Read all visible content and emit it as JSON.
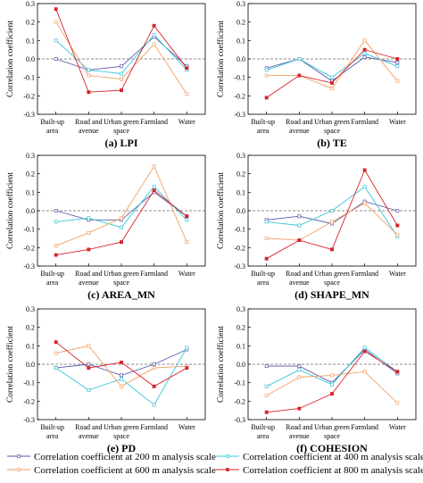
{
  "chart_data": [
    {
      "panel": "(a)",
      "title": "LPI",
      "type": "line",
      "ylabel": "Correlation coefficient",
      "ylim": [
        -0.3,
        0.3
      ],
      "yticks": [
        "0.3",
        "0.2",
        "0.1",
        "0.0",
        "-0.1",
        "-0.2",
        "-0.3"
      ],
      "categories": [
        "Built-up area",
        "Road and avenue",
        "Urban green space",
        "Farmland",
        "Water"
      ],
      "series": [
        {
          "name": "Correlation coefficient at 200 m analysis scale",
          "values": [
            0.0,
            -0.06,
            -0.04,
            0.12,
            -0.04
          ]
        },
        {
          "name": "Correlation coefficient at 400 m analysis scale",
          "values": [
            0.1,
            -0.06,
            -0.08,
            0.13,
            -0.06
          ]
        },
        {
          "name": "Correlation coefficient at 600 m analysis scale",
          "values": [
            0.2,
            -0.09,
            -0.11,
            0.08,
            -0.19
          ]
        },
        {
          "name": "Correlation coefficient at 800 m analysis scale",
          "values": [
            0.27,
            -0.18,
            -0.17,
            0.18,
            -0.05
          ]
        }
      ]
    },
    {
      "panel": "(b)",
      "title": "TE",
      "type": "line",
      "ylabel": "Correlation coefficient",
      "ylim": [
        -0.3,
        0.3
      ],
      "yticks": [
        "0.3",
        "0.2",
        "0.1",
        "0.0",
        "-0.1",
        "-0.2",
        "-0.3"
      ],
      "categories": [
        "Built-up area",
        "Road and avenue",
        "Urban green space",
        "Farmland",
        "Water"
      ],
      "series": [
        {
          "name": "Correlation coefficient at 200 m analysis scale",
          "values": [
            -0.05,
            0.0,
            -0.12,
            0.01,
            -0.02
          ]
        },
        {
          "name": "Correlation coefficient at 400 m analysis scale",
          "values": [
            -0.06,
            0.0,
            -0.1,
            0.03,
            -0.04
          ]
        },
        {
          "name": "Correlation coefficient at 600 m analysis scale",
          "values": [
            -0.09,
            -0.09,
            -0.16,
            0.1,
            -0.12
          ]
        },
        {
          "name": "Correlation coefficient at 800 m analysis scale",
          "values": [
            -0.21,
            -0.09,
            -0.13,
            0.05,
            0.0
          ]
        }
      ]
    },
    {
      "panel": "(c)",
      "title": "AREA_MN",
      "type": "line",
      "ylabel": "Correlation coefficient",
      "ylim": [
        -0.3,
        0.3
      ],
      "yticks": [
        "0.3",
        "0.2",
        "0.1",
        "0.0",
        "-0.1",
        "-0.2",
        "-0.3"
      ],
      "categories": [
        "Built-up area",
        "Road and avenue",
        "Urban green space",
        "Farmland",
        "Water"
      ],
      "series": [
        {
          "name": "Correlation coefficient at 200 m analysis scale",
          "values": [
            0.0,
            -0.05,
            -0.05,
            0.1,
            -0.03
          ]
        },
        {
          "name": "Correlation coefficient at 400 m analysis scale",
          "values": [
            -0.06,
            -0.04,
            -0.09,
            0.13,
            -0.05
          ]
        },
        {
          "name": "Correlation coefficient at 600 m analysis scale",
          "values": [
            -0.19,
            -0.12,
            -0.04,
            0.24,
            -0.17
          ]
        },
        {
          "name": "Correlation coefficient at 800 m analysis scale",
          "values": [
            -0.24,
            -0.21,
            -0.17,
            0.11,
            -0.03
          ]
        }
      ]
    },
    {
      "panel": "(d)",
      "title": "SHAPE_MN",
      "type": "line",
      "ylabel": "Correlation coefficient",
      "ylim": [
        -0.3,
        0.3
      ],
      "yticks": [
        "0.3",
        "0.2",
        "0.1",
        "0.0",
        "-0.1",
        "-0.2",
        "-0.3"
      ],
      "categories": [
        "Built-up area",
        "Road and avenue",
        "Urban green space",
        "Farmland",
        "Water"
      ],
      "series": [
        {
          "name": "Correlation coefficient at 200 m analysis scale",
          "values": [
            -0.05,
            -0.03,
            -0.07,
            0.05,
            0.0
          ]
        },
        {
          "name": "Correlation coefficient at 400 m analysis scale",
          "values": [
            -0.06,
            -0.08,
            0.0,
            0.13,
            -0.14
          ]
        },
        {
          "name": "Correlation coefficient at 600 m analysis scale",
          "values": [
            -0.15,
            -0.16,
            -0.06,
            0.04,
            -0.13
          ]
        },
        {
          "name": "Correlation coefficient at 800 m analysis scale",
          "values": [
            -0.26,
            -0.16,
            -0.21,
            0.22,
            -0.08
          ]
        }
      ]
    },
    {
      "panel": "(e)",
      "title": "PD",
      "type": "line",
      "ylabel": "Correlation coefficient",
      "ylim": [
        -0.3,
        0.3
      ],
      "yticks": [
        "0.3",
        "0.2",
        "0.1",
        "0.0",
        "-0.1",
        "-0.2",
        "-0.3"
      ],
      "categories": [
        "Built-up area",
        "Road and avenue",
        "Urban green space",
        "Farmland",
        "Water"
      ],
      "series": [
        {
          "name": "Correlation coefficient at 200 m analysis scale",
          "values": [
            -0.02,
            0.0,
            -0.06,
            0.0,
            0.08
          ]
        },
        {
          "name": "Correlation coefficient at 400 m analysis scale",
          "values": [
            -0.02,
            -0.14,
            -0.08,
            -0.22,
            0.09
          ]
        },
        {
          "name": "Correlation coefficient at 600 m analysis scale",
          "values": [
            0.06,
            0.1,
            -0.12,
            -0.02,
            -0.01
          ]
        },
        {
          "name": "Correlation coefficient at 800 m analysis scale",
          "values": [
            0.12,
            -0.02,
            0.01,
            -0.12,
            -0.02
          ]
        }
      ]
    },
    {
      "panel": "(f)",
      "title": "COHESION",
      "type": "line",
      "ylabel": "Correlation coefficient",
      "ylim": [
        -0.3,
        0.3
      ],
      "yticks": [
        "0.3",
        "0.2",
        "0.1",
        "0.0",
        "-0.1",
        "-0.2",
        "-0.3"
      ],
      "categories": [
        "Built-up area",
        "Road and avenue",
        "Urban green space",
        "Farmland",
        "Water"
      ],
      "series": [
        {
          "name": "Correlation coefficient at 200 m analysis scale",
          "values": [
            -0.01,
            -0.01,
            -0.1,
            0.08,
            -0.05
          ]
        },
        {
          "name": "Correlation coefficient at 400 m analysis scale",
          "values": [
            -0.12,
            -0.03,
            -0.11,
            0.09,
            -0.04
          ]
        },
        {
          "name": "Correlation coefficient at 600 m analysis scale",
          "values": [
            -0.17,
            -0.07,
            -0.06,
            -0.04,
            -0.21
          ]
        },
        {
          "name": "Correlation coefficient at 800 m analysis scale",
          "values": [
            -0.26,
            -0.24,
            -0.16,
            0.07,
            -0.04
          ]
        }
      ]
    }
  ],
  "legend": [
    {
      "label": "Correlation coefficient at 200 m analysis scale",
      "color": "#5a5aa8"
    },
    {
      "label": "Correlation coefficient at 400 m analysis scale",
      "color": "#38c6d6"
    },
    {
      "label": "Correlation coefficient at 600 m analysis scale",
      "color": "#f2a066"
    },
    {
      "label": "Correlation coefficient at 800 m analysis scale",
      "color": "#d8232b"
    }
  ],
  "series_colors": [
    "#5a5aa8",
    "#38c6d6",
    "#f2a066",
    "#d8232b"
  ],
  "zero_line_color": "#666666"
}
